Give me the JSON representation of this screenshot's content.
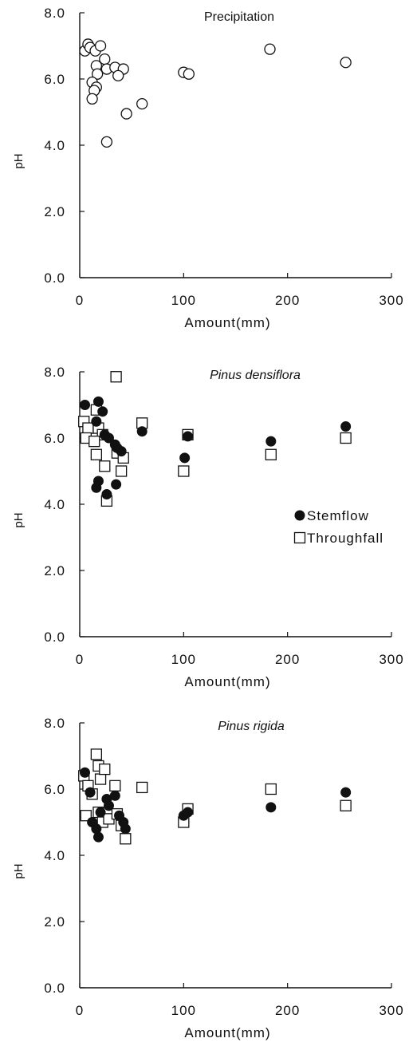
{
  "chart_data": [
    {
      "type": "scatter",
      "title": "Precipitation",
      "title_italic": false,
      "xlabel": "Amount(mm)",
      "ylabel": "pH",
      "xlim": [
        0,
        300
      ],
      "ylim": [
        0,
        8
      ],
      "xticks": [
        "0",
        "100",
        "200",
        "300"
      ],
      "yticks": [
        "0.0",
        "2.0",
        "4.0",
        "6.0",
        "8.0"
      ],
      "grid": false,
      "series": [
        {
          "marker": "open-circle",
          "points": [
            [
              5,
              6.85
            ],
            [
              8,
              7.05
            ],
            [
              10,
              6.95
            ],
            [
              15,
              6.85
            ],
            [
              20,
              7.0
            ],
            [
              24,
              6.6
            ],
            [
              16,
              6.4
            ],
            [
              17,
              6.15
            ],
            [
              26,
              6.3
            ],
            [
              34,
              6.35
            ],
            [
              42,
              6.3
            ],
            [
              37,
              6.1
            ],
            [
              12,
              5.9
            ],
            [
              16,
              5.75
            ],
            [
              14,
              5.65
            ],
            [
              12,
              5.4
            ],
            [
              60,
              5.25
            ],
            [
              45,
              4.95
            ],
            [
              26,
              4.1
            ],
            [
              100,
              6.2
            ],
            [
              105,
              6.15
            ],
            [
              183,
              6.9
            ],
            [
              256,
              6.5
            ]
          ]
        }
      ]
    },
    {
      "type": "scatter",
      "title": "Pinus densiflora",
      "title_italic": true,
      "xlabel": "Amount(mm)",
      "ylabel": "pH",
      "xlim": [
        0,
        300
      ],
      "ylim": [
        0,
        8
      ],
      "xticks": [
        "0",
        "100",
        "200",
        "300"
      ],
      "yticks": [
        "0.0",
        "2.0",
        "4.0",
        "6.0",
        "8.0"
      ],
      "grid": false,
      "legend": {
        "position": "right",
        "entries": [
          {
            "label": "Stemflow",
            "marker": "filled-circle"
          },
          {
            "label": "Throughfall",
            "marker": "open-square"
          }
        ]
      },
      "series": [
        {
          "name": "Stemflow",
          "marker": "filled-circle",
          "points": [
            [
              5,
              7.0
            ],
            [
              18,
              7.1
            ],
            [
              22,
              6.8
            ],
            [
              16,
              6.5
            ],
            [
              24,
              6.1
            ],
            [
              28,
              6.0
            ],
            [
              34,
              5.8
            ],
            [
              40,
              5.6
            ],
            [
              36,
              5.7
            ],
            [
              18,
              4.7
            ],
            [
              16,
              4.5
            ],
            [
              26,
              4.3
            ],
            [
              35,
              4.6
            ],
            [
              60,
              6.2
            ],
            [
              101,
              5.4
            ],
            [
              104,
              6.05
            ],
            [
              184,
              5.9
            ],
            [
              256,
              6.35
            ]
          ]
        },
        {
          "name": "Throughfall",
          "marker": "open-square",
          "points": [
            [
              4,
              6.5
            ],
            [
              8,
              6.3
            ],
            [
              6,
              6.0
            ],
            [
              16,
              6.85
            ],
            [
              18,
              6.3
            ],
            [
              22,
              6.1
            ],
            [
              14,
              5.9
            ],
            [
              16,
              5.5
            ],
            [
              24,
              5.15
            ],
            [
              36,
              5.55
            ],
            [
              42,
              5.4
            ],
            [
              40,
              5.0
            ],
            [
              26,
              4.1
            ],
            [
              35,
              7.85
            ],
            [
              60,
              6.45
            ],
            [
              100,
              5.0
            ],
            [
              104,
              6.1
            ],
            [
              184,
              5.5
            ],
            [
              256,
              6.0
            ]
          ]
        }
      ]
    },
    {
      "type": "scatter",
      "title": "Pinus rigida",
      "title_italic": true,
      "xlabel": "Amount(mm)",
      "ylabel": "pH",
      "xlim": [
        0,
        300
      ],
      "ylim": [
        0,
        8
      ],
      "xticks": [
        "0",
        "100",
        "200",
        "300"
      ],
      "yticks": [
        "0.0",
        "2.0",
        "4.0",
        "6.0",
        "8.0"
      ],
      "grid": false,
      "series": [
        {
          "name": "Stemflow",
          "marker": "filled-circle",
          "points": [
            [
              5,
              6.5
            ],
            [
              10,
              5.9
            ],
            [
              12,
              5.0
            ],
            [
              16,
              4.8
            ],
            [
              18,
              4.55
            ],
            [
              20,
              5.3
            ],
            [
              26,
              5.7
            ],
            [
              28,
              5.5
            ],
            [
              34,
              5.8
            ],
            [
              38,
              5.2
            ],
            [
              42,
              5.0
            ],
            [
              44,
              4.8
            ],
            [
              100,
              5.2
            ],
            [
              104,
              5.3
            ],
            [
              184,
              5.45
            ],
            [
              256,
              5.9
            ]
          ]
        },
        {
          "name": "Throughfall",
          "marker": "open-square",
          "points": [
            [
              4,
              6.4
            ],
            [
              8,
              6.1
            ],
            [
              6,
              5.2
            ],
            [
              12,
              5.85
            ],
            [
              16,
              7.05
            ],
            [
              18,
              6.7
            ],
            [
              20,
              6.3
            ],
            [
              24,
              6.6
            ],
            [
              18,
              5.3
            ],
            [
              22,
              5.0
            ],
            [
              28,
              5.1
            ],
            [
              34,
              6.1
            ],
            [
              36,
              5.25
            ],
            [
              40,
              4.9
            ],
            [
              44,
              4.5
            ],
            [
              60,
              6.05
            ],
            [
              100,
              5.0
            ],
            [
              104,
              5.4
            ],
            [
              184,
              6.0
            ],
            [
              256,
              5.5
            ]
          ]
        }
      ]
    }
  ]
}
